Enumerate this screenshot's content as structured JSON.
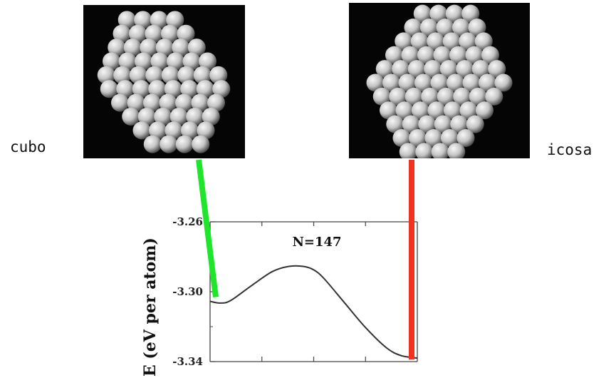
{
  "labels": {
    "left": "cubo",
    "right": "icosa"
  },
  "colors": {
    "connector_left": "#1ee62a",
    "connector_right": "#f2321e",
    "curve": "#333333"
  },
  "images": {
    "left": "cuboctahedral-nanocluster-render",
    "right": "icosahedral-nanocluster-render"
  },
  "chart_data": {
    "type": "line",
    "title": "N=147",
    "xlabel": "",
    "ylabel": "E (eV per atom)",
    "ylim": [
      -3.34,
      -3.26
    ],
    "yticks": [
      "-3.26",
      "-3.30",
      "-3.34"
    ],
    "xlim": [
      0,
      1
    ],
    "series": [
      {
        "x": [
          0.0,
          0.05,
          0.1,
          0.2,
          0.3,
          0.38,
          0.45,
          0.5,
          0.55,
          0.65,
          0.75,
          0.85,
          0.92,
          1.0
        ],
        "values": [
          -3.3055,
          -3.3065,
          -3.305,
          -3.2965,
          -3.2885,
          -3.2855,
          -3.2855,
          -3.2875,
          -3.2925,
          -3.3065,
          -3.3205,
          -3.332,
          -3.3365,
          -3.338
        ]
      }
    ]
  }
}
